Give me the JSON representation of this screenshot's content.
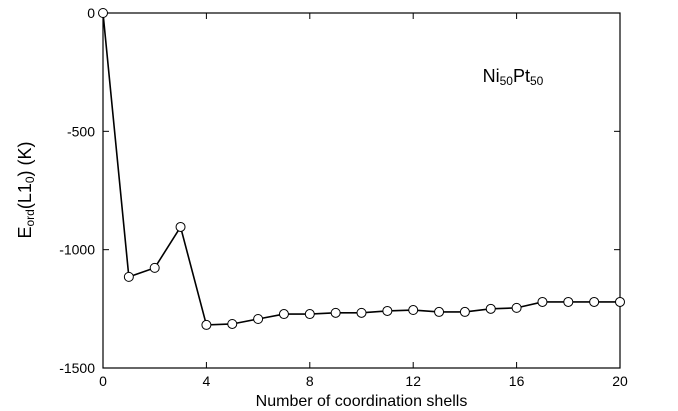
{
  "chart_data": {
    "type": "line",
    "annotation": [
      "Ni",
      "50",
      "Pt",
      "50"
    ],
    "xlabel": "Number of coordination shells",
    "ylabel": [
      "E",
      "ord",
      "(L1",
      "0",
      ") (K)"
    ],
    "x": [
      0,
      1,
      2,
      3,
      4,
      5,
      6,
      7,
      8,
      9,
      10,
      11,
      12,
      13,
      14,
      15,
      16,
      17,
      18,
      19,
      20
    ],
    "series": [
      {
        "color": "#000000",
        "values": [
          0,
          -1115,
          -1077,
          -904,
          -1318,
          -1314,
          -1293,
          -1272,
          -1272,
          -1267,
          -1267,
          -1259,
          -1255,
          -1263,
          -1263,
          -1250,
          -1246,
          -1221,
          -1221,
          -1221,
          -1221
        ]
      }
    ],
    "xlim": [
      0,
      20
    ],
    "xticks": [
      0,
      4,
      8,
      12,
      16,
      20
    ],
    "ylim": [
      -1500,
      0
    ],
    "yticks": [
      0,
      -500,
      -1000,
      -1500
    ],
    "marker": "open-circle"
  }
}
